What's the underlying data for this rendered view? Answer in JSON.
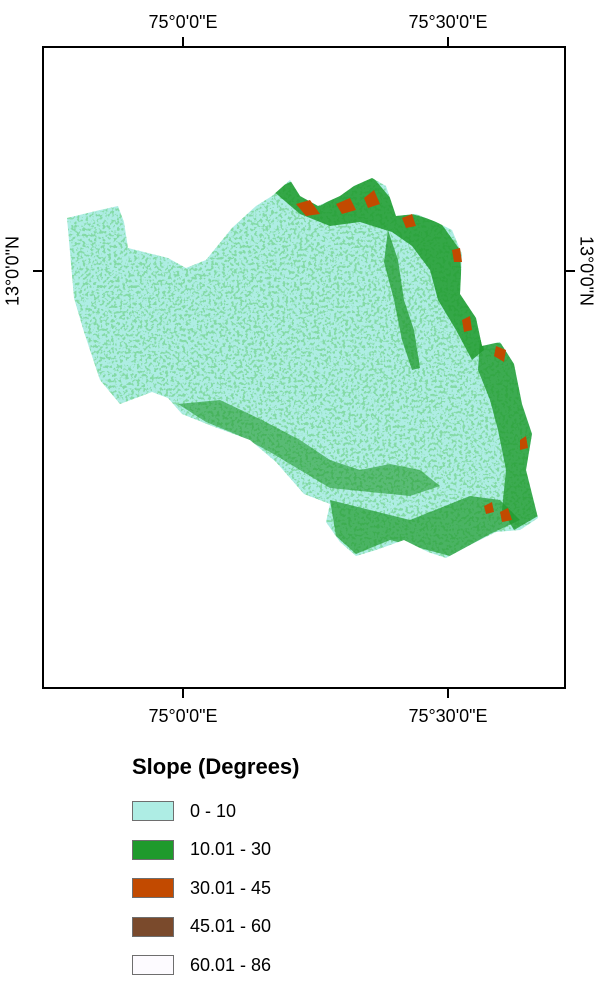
{
  "axes": {
    "top": [
      "75°0'0\"E",
      "75°30'0\"E"
    ],
    "bottom": [
      "75°0'0\"E",
      "75°30'0\"E"
    ],
    "left": "13°0'0\"N",
    "right": "13°0'0\"N"
  },
  "legend": {
    "title": "Slope (Degrees)",
    "classes": [
      {
        "label": "0 - 10",
        "color": "#aeede4"
      },
      {
        "label": "10.01 - 30",
        "color": "#1f9a2c"
      },
      {
        "label": "30.01 - 45",
        "color": "#c24a00"
      },
      {
        "label": "45.01 - 60",
        "color": "#7a4a2c"
      },
      {
        "label": "60.01 - 86",
        "color": "#fdfbff"
      }
    ]
  }
}
